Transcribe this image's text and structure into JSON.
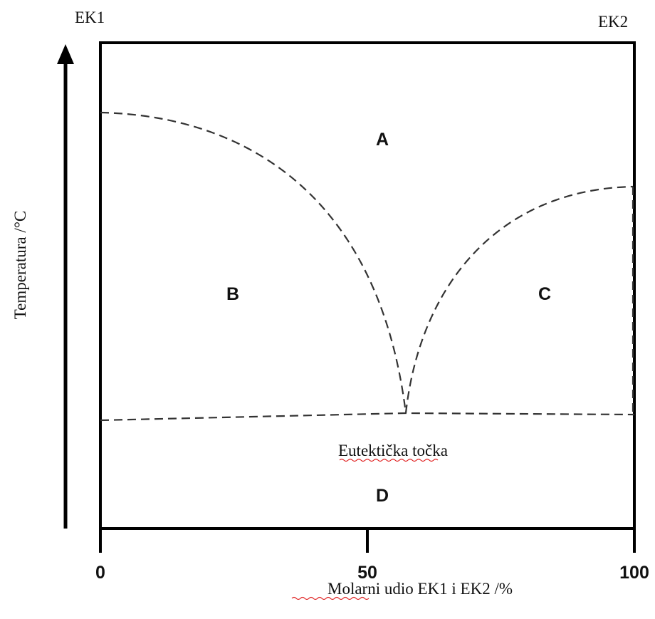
{
  "corners": {
    "left": "EK1",
    "right": "EK2"
  },
  "y_axis": {
    "label": "Temperatura /°C"
  },
  "x_axis": {
    "label": "Molarni udio EK1 i EK2 /%",
    "range": [
      0,
      100
    ],
    "ticks": [
      0,
      50,
      100
    ]
  },
  "regions": {
    "a": "A",
    "b": "B",
    "c": "C",
    "d": "D"
  },
  "eutectic_label": "Eutektička točka"
}
